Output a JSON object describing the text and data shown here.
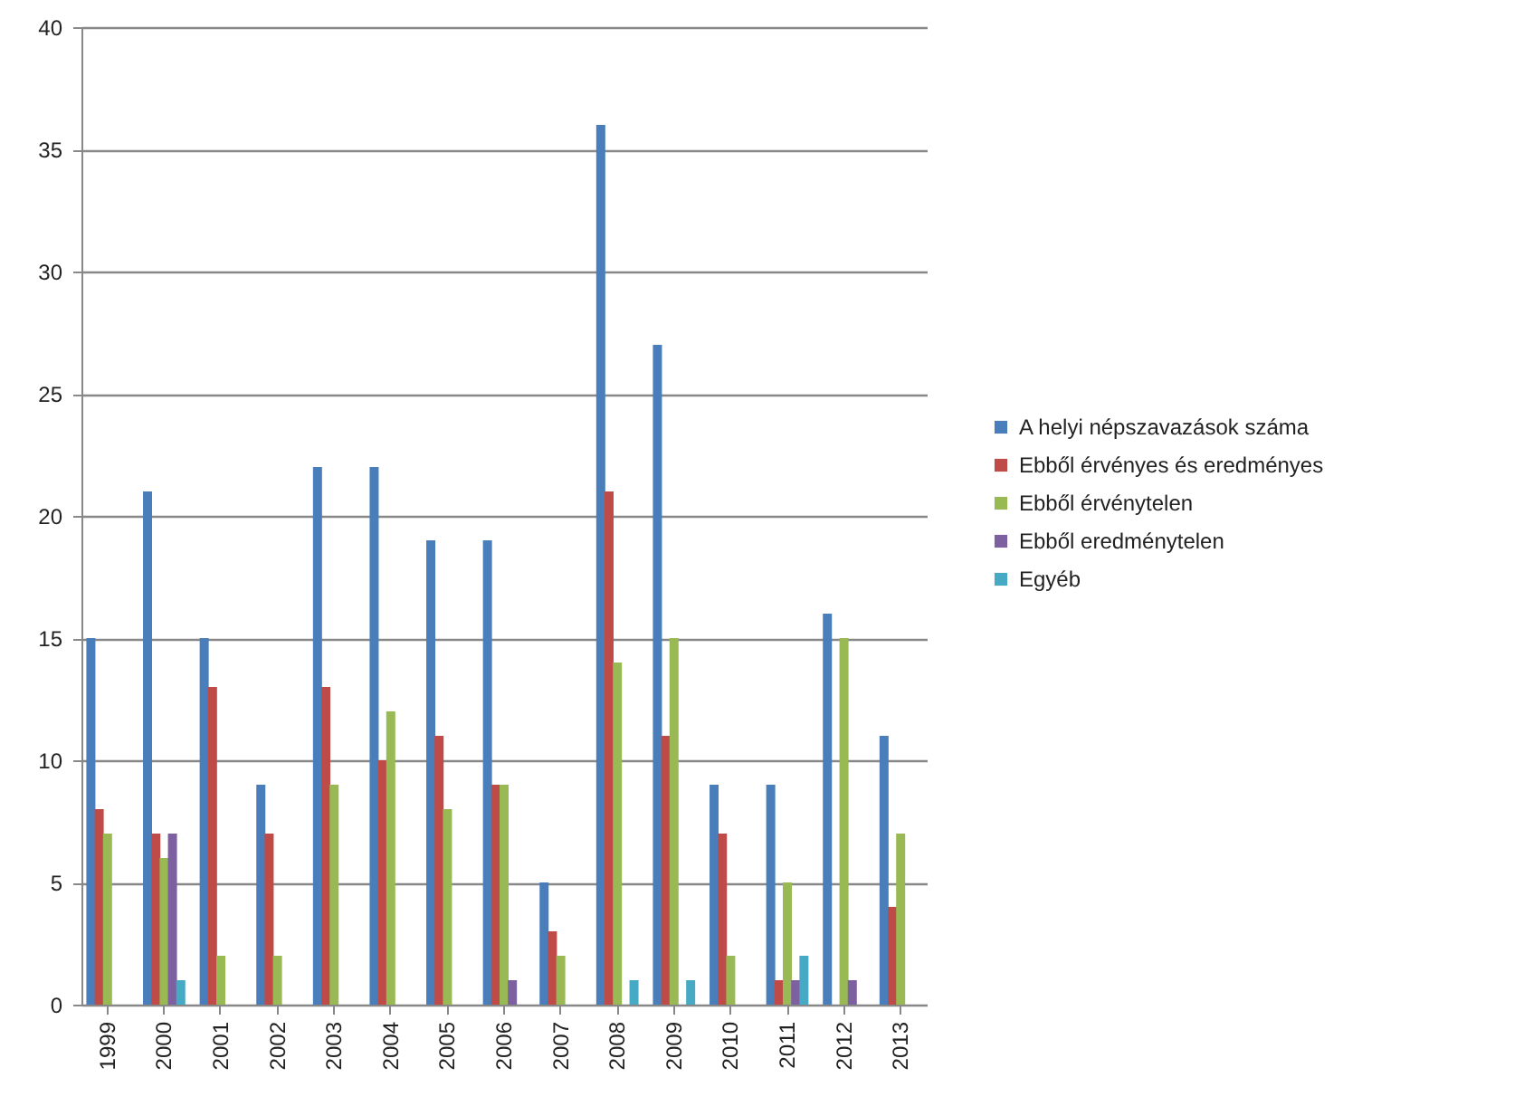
{
  "chart_data": {
    "type": "bar",
    "categories": [
      "1999",
      "2000",
      "2001",
      "2002",
      "2003",
      "2004",
      "2005",
      "2006",
      "2007",
      "2008",
      "2009",
      "2010",
      "2011",
      "2012",
      "2013"
    ],
    "series": [
      {
        "name": "A helyi népszavazások száma",
        "color": "#4a7ebb",
        "values": [
          15,
          21,
          15,
          9,
          22,
          22,
          19,
          19,
          5,
          36,
          27,
          9,
          9,
          16,
          11
        ]
      },
      {
        "name": "Ebből érvényes és eredményes",
        "color": "#be4b48",
        "values": [
          8,
          7,
          13,
          7,
          13,
          10,
          11,
          9,
          3,
          21,
          11,
          7,
          1,
          0,
          4
        ]
      },
      {
        "name": "Ebből érvénytelen",
        "color": "#98b954",
        "values": [
          7,
          6,
          2,
          2,
          9,
          12,
          8,
          9,
          2,
          14,
          15,
          2,
          5,
          15,
          7
        ]
      },
      {
        "name": "Ebből eredménytelen",
        "color": "#7d60a0",
        "values": [
          0,
          7,
          0,
          0,
          0,
          0,
          0,
          1,
          0,
          0,
          0,
          0,
          1,
          1,
          0
        ]
      },
      {
        "name": "Egyéb",
        "color": "#46aac5",
        "values": [
          0,
          1,
          0,
          0,
          0,
          0,
          0,
          0,
          0,
          1,
          1,
          0,
          2,
          0,
          0
        ]
      }
    ],
    "ylim": [
      0,
      40
    ],
    "yticks": [
      0,
      5,
      10,
      15,
      20,
      25,
      30,
      35,
      40
    ],
    "grid": "y",
    "legend": "right"
  }
}
